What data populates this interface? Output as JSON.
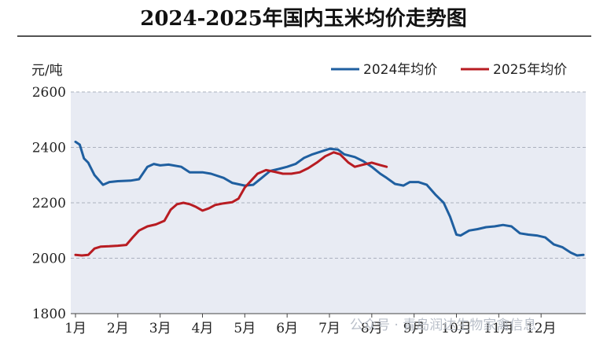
{
  "chart_data": {
    "type": "line",
    "title": "2024-2025年国内玉米均价走势图",
    "ylabel": "元/吨",
    "xlabel": "",
    "ylim": [
      1800,
      2600
    ],
    "yticks": [
      1800,
      2000,
      2200,
      2400,
      2600
    ],
    "categories": [
      "1月",
      "2月",
      "3月",
      "4月",
      "5月",
      "6月",
      "7月",
      "8月",
      "9月",
      "10月",
      "11月",
      "12月"
    ],
    "legend_position": "top-right",
    "grid": "horizontal-dashed",
    "series": [
      {
        "name": "2024年均价",
        "color": "#1f5fa0",
        "points": [
          [
            1.0,
            2420
          ],
          [
            1.1,
            2410
          ],
          [
            1.2,
            2360
          ],
          [
            1.3,
            2345
          ],
          [
            1.45,
            2300
          ],
          [
            1.65,
            2265
          ],
          [
            1.8,
            2275
          ],
          [
            2.0,
            2278
          ],
          [
            2.3,
            2280
          ],
          [
            2.5,
            2285
          ],
          [
            2.7,
            2330
          ],
          [
            2.85,
            2340
          ],
          [
            3.0,
            2335
          ],
          [
            3.2,
            2338
          ],
          [
            3.5,
            2330
          ],
          [
            3.7,
            2310
          ],
          [
            4.0,
            2310
          ],
          [
            4.2,
            2305
          ],
          [
            4.5,
            2290
          ],
          [
            4.7,
            2272
          ],
          [
            5.0,
            2262
          ],
          [
            5.2,
            2265
          ],
          [
            5.4,
            2290
          ],
          [
            5.6,
            2315
          ],
          [
            5.8,
            2322
          ],
          [
            6.0,
            2330
          ],
          [
            6.2,
            2340
          ],
          [
            6.4,
            2362
          ],
          [
            6.6,
            2375
          ],
          [
            6.8,
            2385
          ],
          [
            7.0,
            2395
          ],
          [
            7.2,
            2392
          ],
          [
            7.35,
            2375
          ],
          [
            7.6,
            2365
          ],
          [
            7.8,
            2350
          ],
          [
            8.0,
            2330
          ],
          [
            8.2,
            2305
          ],
          [
            8.35,
            2290
          ],
          [
            8.55,
            2268
          ],
          [
            8.75,
            2262
          ],
          [
            8.9,
            2275
          ],
          [
            9.1,
            2275
          ],
          [
            9.3,
            2265
          ],
          [
            9.5,
            2230
          ],
          [
            9.7,
            2200
          ],
          [
            9.85,
            2150
          ],
          [
            10.0,
            2085
          ],
          [
            10.1,
            2082
          ],
          [
            10.3,
            2100
          ],
          [
            10.5,
            2105
          ],
          [
            10.7,
            2112
          ],
          [
            10.9,
            2115
          ],
          [
            11.1,
            2120
          ],
          [
            11.3,
            2115
          ],
          [
            11.5,
            2090
          ],
          [
            11.7,
            2085
          ],
          [
            11.9,
            2082
          ],
          [
            12.1,
            2075
          ],
          [
            12.3,
            2050
          ],
          [
            12.5,
            2040
          ],
          [
            12.7,
            2020
          ],
          [
            12.85,
            2010
          ],
          [
            13.0,
            2012
          ]
        ]
      },
      {
        "name": "2025年均价",
        "color": "#b81c22",
        "points": [
          [
            1.0,
            2012
          ],
          [
            1.15,
            2010
          ],
          [
            1.3,
            2012
          ],
          [
            1.45,
            2035
          ],
          [
            1.6,
            2042
          ],
          [
            1.8,
            2043
          ],
          [
            2.0,
            2045
          ],
          [
            2.2,
            2048
          ],
          [
            2.35,
            2075
          ],
          [
            2.5,
            2100
          ],
          [
            2.7,
            2115
          ],
          [
            2.9,
            2122
          ],
          [
            3.1,
            2135
          ],
          [
            3.25,
            2175
          ],
          [
            3.4,
            2195
          ],
          [
            3.55,
            2200
          ],
          [
            3.7,
            2195
          ],
          [
            3.85,
            2185
          ],
          [
            4.0,
            2172
          ],
          [
            4.15,
            2180
          ],
          [
            4.3,
            2192
          ],
          [
            4.5,
            2198
          ],
          [
            4.7,
            2202
          ],
          [
            4.85,
            2215
          ],
          [
            5.0,
            2255
          ],
          [
            5.15,
            2280
          ],
          [
            5.3,
            2305
          ],
          [
            5.5,
            2318
          ],
          [
            5.7,
            2312
          ],
          [
            5.9,
            2305
          ],
          [
            6.1,
            2305
          ],
          [
            6.3,
            2310
          ],
          [
            6.5,
            2325
          ],
          [
            6.7,
            2345
          ],
          [
            6.9,
            2368
          ],
          [
            7.1,
            2382
          ],
          [
            7.25,
            2375
          ],
          [
            7.45,
            2345
          ],
          [
            7.6,
            2330
          ],
          [
            7.8,
            2338
          ],
          [
            8.0,
            2345
          ],
          [
            8.2,
            2336
          ],
          [
            8.35,
            2330
          ]
        ]
      }
    ],
    "watermark": "公众号 · 青岛润达生物家禽信息"
  }
}
